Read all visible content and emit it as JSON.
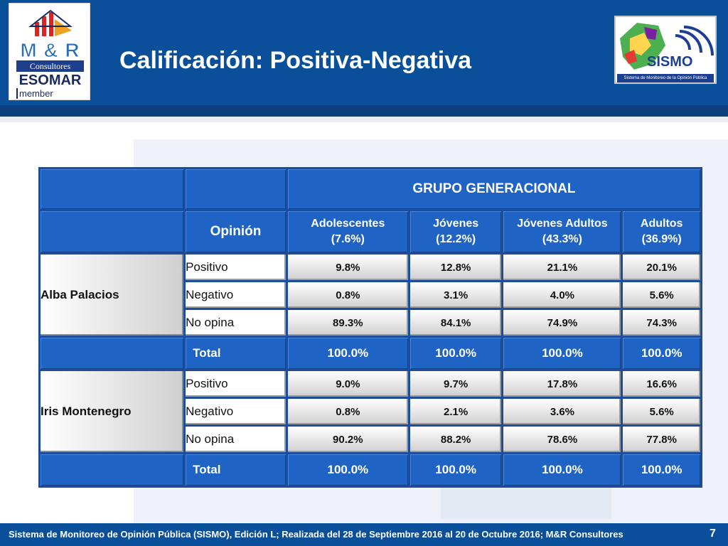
{
  "header": {
    "title": "Calificación: Positiva-Negativa",
    "logo_left": {
      "brand": "M & R",
      "consultores": "Consultores",
      "esomar": "ESOMAR",
      "member": "member"
    },
    "logo_right": {
      "brand": "SISMO",
      "subtitle": "Sistema de Monitoreo de la Opinión Pública"
    }
  },
  "table": {
    "group_header": "GRUPO GENERACIONAL",
    "opinion_header": "Opinión",
    "columns": [
      {
        "name": "Adolescentes",
        "pct": "(7.6%)"
      },
      {
        "name": "Jóvenes",
        "pct": "(12.2%)"
      },
      {
        "name": "Jóvenes Adultos",
        "pct": "(43.3%)"
      },
      {
        "name": "Adultos",
        "pct": "(36.9%)"
      }
    ],
    "candidates": [
      {
        "name": "Alba Palacios",
        "rows": [
          {
            "label": "Positivo",
            "values": [
              "9.8%",
              "12.8%",
              "21.1%",
              "20.1%"
            ]
          },
          {
            "label": "Negativo",
            "values": [
              "0.8%",
              "3.1%",
              "4.0%",
              "5.6%"
            ]
          },
          {
            "label": "No opina",
            "values": [
              "89.3%",
              "84.1%",
              "74.9%",
              "74.3%"
            ]
          }
        ],
        "total": {
          "label": "Total",
          "values": [
            "100.0%",
            "100.0%",
            "100.0%",
            "100.0%"
          ]
        }
      },
      {
        "name": "Iris Montenegro",
        "rows": [
          {
            "label": "Positivo",
            "values": [
              "9.0%",
              "9.7%",
              "17.8%",
              "16.6%"
            ]
          },
          {
            "label": "Negativo",
            "values": [
              "0.8%",
              "2.1%",
              "3.6%",
              "5.6%"
            ]
          },
          {
            "label": "No opina",
            "values": [
              "90.2%",
              "88.2%",
              "78.6%",
              "77.8%"
            ]
          }
        ],
        "total": {
          "label": "Total",
          "values": [
            "100.0%",
            "100.0%",
            "100.0%",
            "100.0%"
          ]
        }
      }
    ]
  },
  "footer": {
    "text": "Sistema de Monitoreo de Opinión Pública (SISMO), Edición L; Realizada del 28 de Septiembre 2016 al 20 de Octubre 2016; M&R Consultores",
    "page": "7"
  },
  "colors": {
    "header_blue": "#0a4f9a",
    "table_blue": "#1f63c4",
    "cell_gray": "#d6d6d6"
  }
}
